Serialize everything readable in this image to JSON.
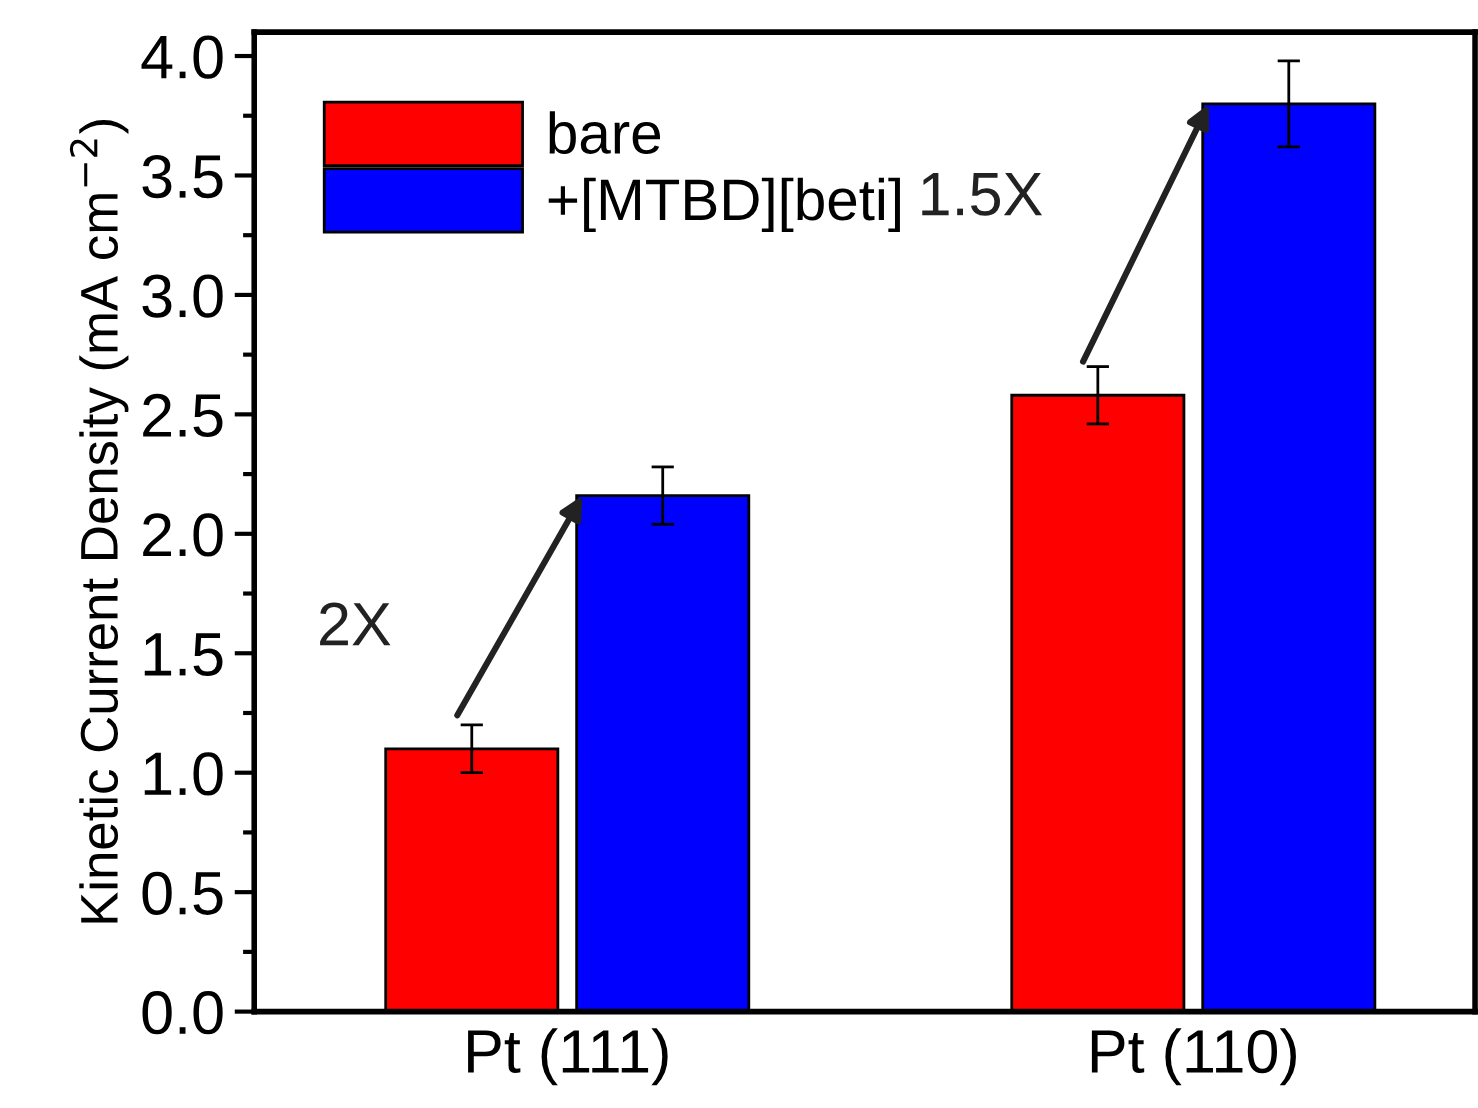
{
  "chart_data": {
    "type": "bar",
    "ylabel": "Kinetic Current Density (mA cm$^{−2}$)",
    "categories": [
      "Pt (111)",
      "Pt (110)"
    ],
    "series": [
      {
        "name": "bare",
        "color": "#ff0000",
        "values": [
          1.1,
          2.58
        ],
        "errors": [
          0.1,
          0.12
        ]
      },
      {
        "name": "+[MTBD][beti]",
        "color": "#0000ff",
        "values": [
          2.16,
          3.8
        ],
        "errors": [
          0.12,
          0.18
        ]
      }
    ],
    "ylim": [
      0,
      4.1
    ],
    "yticks": [
      {
        "value": 0,
        "label": "0.0"
      },
      0.5,
      {
        "value": 1,
        "label": "1.0"
      },
      1.5,
      {
        "value": 2,
        "label": "2.0"
      },
      2.5,
      {
        "value": 3,
        "label": "3.0"
      },
      3.5,
      {
        "value": 4,
        "label": "4.0"
      }
    ],
    "annotations": [
      {
        "text": "2X",
        "x": "Pt (111)",
        "y": 1.6
      },
      {
        "text": "1.5X",
        "x": "Pt (110)",
        "y": 3.4
      }
    ],
    "legend": "top left",
    "grid": false
  }
}
